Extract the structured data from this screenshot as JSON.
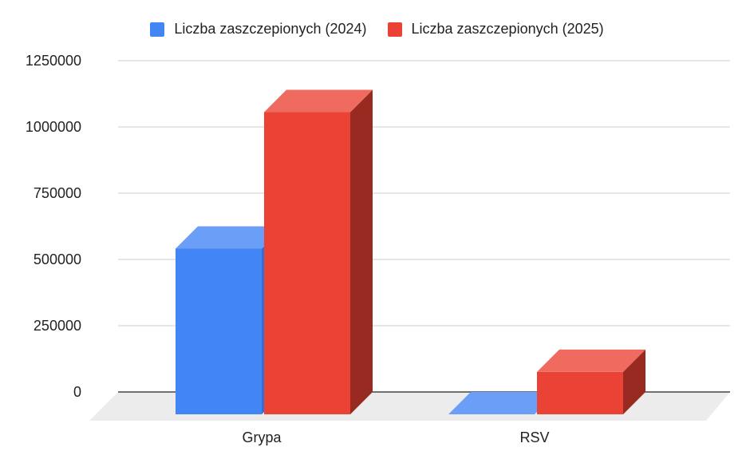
{
  "chart_data": {
    "type": "bar",
    "style": "3d-column",
    "categories": [
      "Grypa",
      "RSV"
    ],
    "series": [
      {
        "name": "Liczba zaszczepionych (2024)",
        "color": "#4285f4",
        "top_color": "#6a9ef7",
        "side_color": "#2f6fd6",
        "values": [
          625000,
          0
        ]
      },
      {
        "name": "Liczba zaszczepionych (2025)",
        "color": "#ea4335",
        "top_color": "#f06b5f",
        "side_color": "#992a22",
        "values": [
          1140000,
          160000
        ]
      }
    ],
    "yticks": [
      "0",
      "250000",
      "500000",
      "750000",
      "1000000",
      "1250000"
    ],
    "ylim": [
      0,
      1250000
    ],
    "grid": true,
    "legend": "top-center",
    "title": "",
    "xlabel": "",
    "ylabel": ""
  }
}
